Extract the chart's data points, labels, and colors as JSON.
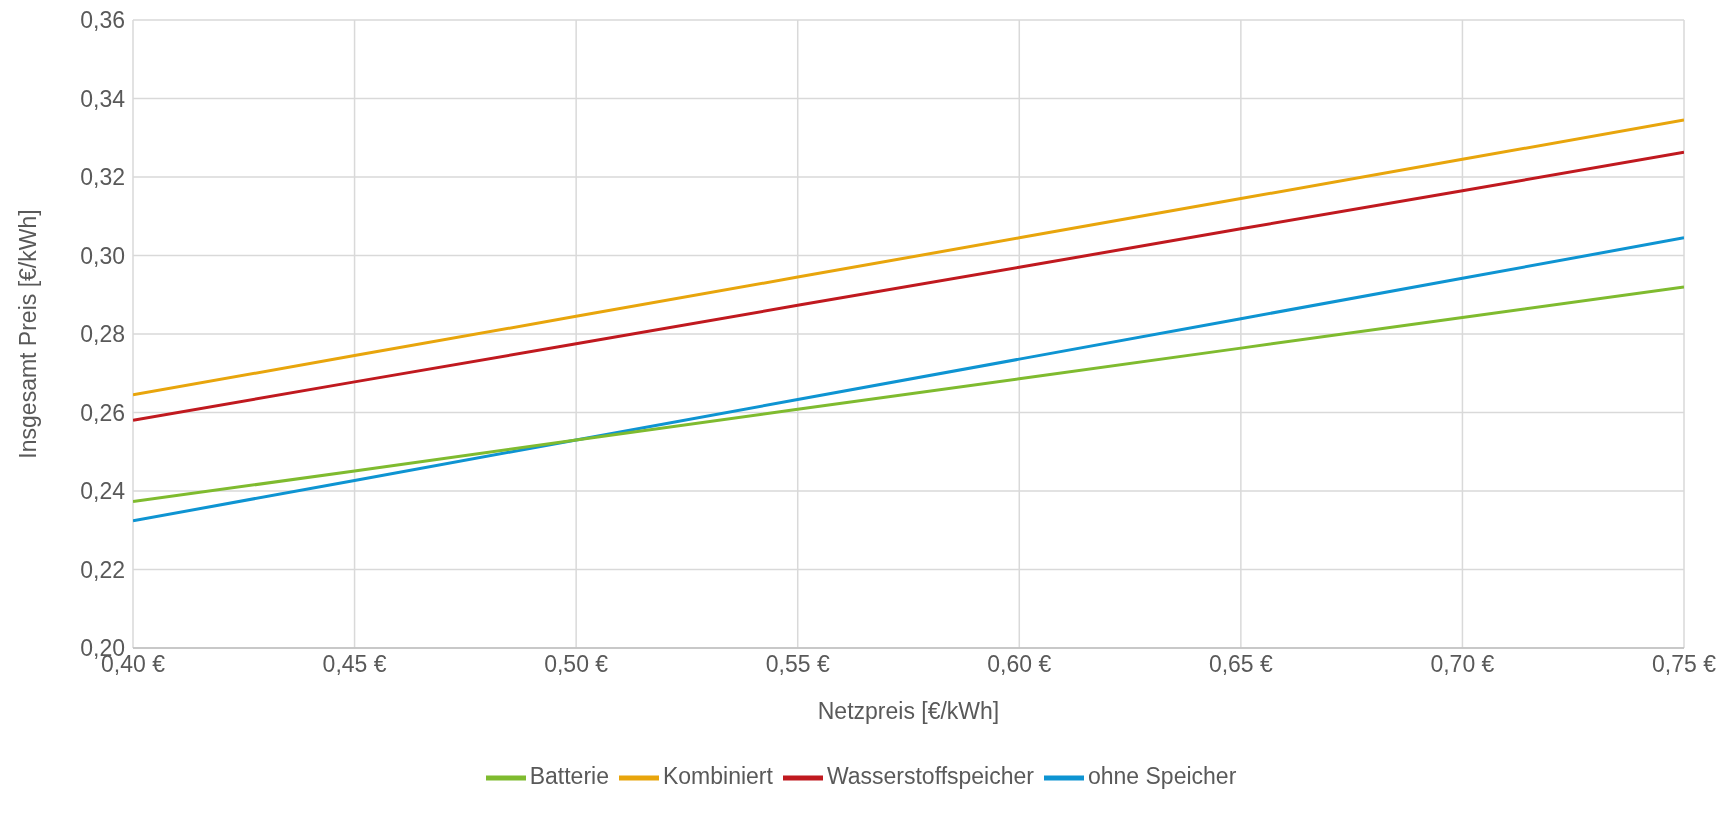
{
  "chart_data": {
    "type": "line",
    "xlabel": "Netzpreis [€/kWh]",
    "ylabel": "Insgesamt Preis [€/kWh]",
    "x": [
      0.4,
      0.45,
      0.5,
      0.55,
      0.6,
      0.65,
      0.7,
      0.75
    ],
    "series": [
      {
        "name": "ohne Speicher",
        "color": "#0e94d2",
        "values": [
          0.2324,
          0.2427,
          0.253,
          0.2633,
          0.2736,
          0.2839,
          0.2942,
          0.3045
        ]
      },
      {
        "name": "Batterie",
        "color": "#7fbb2f",
        "values": [
          0.2373,
          0.2451,
          0.253,
          0.2608,
          0.2686,
          0.2764,
          0.2842,
          0.292
        ]
      },
      {
        "name": "Kombiniert",
        "color": "#e8a50c",
        "values": [
          0.2645,
          0.2745,
          0.2845,
          0.2945,
          0.3045,
          0.3145,
          0.3245,
          0.3345
        ]
      },
      {
        "name": "Wasserstoffspeicher",
        "color": "#c0191f",
        "values": [
          0.258,
          0.2678,
          0.2775,
          0.2873,
          0.297,
          0.3068,
          0.3165,
          0.3263
        ]
      }
    ],
    "xlim": [
      0.4,
      0.75
    ],
    "xticks": [
      {
        "value": 0.4,
        "label": "0,40 €"
      },
      {
        "value": 0.45,
        "label": "0,45 €"
      },
      {
        "value": 0.5,
        "label": "0,50 €"
      },
      {
        "value": 0.55,
        "label": "0,55 €"
      },
      {
        "value": 0.6,
        "label": "0,60 €"
      },
      {
        "value": 0.65,
        "label": "0,65 €"
      },
      {
        "value": 0.7,
        "label": "0,70 €"
      },
      {
        "value": 0.75,
        "label": "0,75 €"
      }
    ],
    "ylim": [
      0.2,
      0.36
    ],
    "yticks": [
      {
        "value": 0.2,
        "label": "0,20"
      },
      {
        "value": 0.22,
        "label": "0,22"
      },
      {
        "value": 0.24,
        "label": "0,24"
      },
      {
        "value": 0.26,
        "label": "0,26"
      },
      {
        "value": 0.28,
        "label": "0,28"
      },
      {
        "value": 0.3,
        "label": "0,30"
      },
      {
        "value": 0.32,
        "label": "0,32"
      },
      {
        "value": 0.34,
        "label": "0,34"
      },
      {
        "value": 0.36,
        "label": "0,36"
      }
    ],
    "grid": true,
    "legend": "bottom",
    "marker": "none",
    "line_style": "solid"
  }
}
